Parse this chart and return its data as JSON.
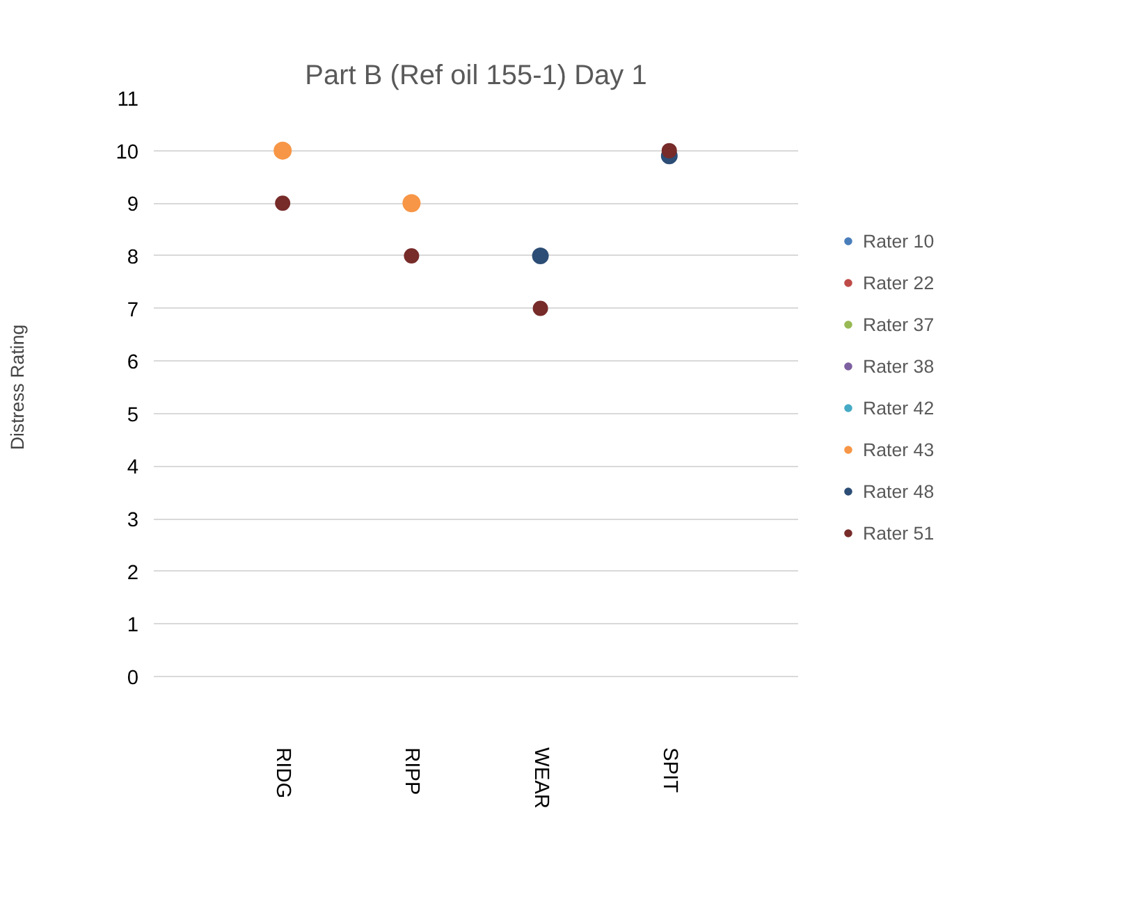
{
  "chart_data": {
    "type": "scatter",
    "title": "Part B (Ref oil 155-1) Day 1",
    "ylabel": "Distress Rating",
    "categories": [
      "RIDG",
      "RIPP",
      "WEAR",
      "SPIT"
    ],
    "ylim": [
      0,
      11
    ],
    "yticks": [
      0,
      1,
      2,
      3,
      4,
      5,
      6,
      7,
      8,
      9,
      10,
      11
    ],
    "grid": "y",
    "legend": "right",
    "marker": "circle",
    "series": [
      {
        "name": "Rater 10",
        "color": "#4a7ebb",
        "values": [
          null,
          null,
          null,
          null
        ]
      },
      {
        "name": "Rater 22",
        "color": "#be4b48",
        "values": [
          null,
          null,
          null,
          null
        ]
      },
      {
        "name": "Rater 37",
        "color": "#98b954",
        "values": [
          null,
          null,
          null,
          null
        ]
      },
      {
        "name": "Rater 38",
        "color": "#7d60a0",
        "values": [
          null,
          null,
          null,
          null
        ]
      },
      {
        "name": "Rater 42",
        "color": "#46aac5",
        "values": [
          null,
          null,
          null,
          null
        ]
      },
      {
        "name": "Rater 43",
        "color": "#f79646",
        "values": [
          10,
          9,
          null,
          null
        ]
      },
      {
        "name": "Rater 48",
        "color": "#2c4d75",
        "values": [
          null,
          null,
          8,
          9.9
        ]
      },
      {
        "name": "Rater 51",
        "color": "#772c2a",
        "values": [
          9,
          8,
          7,
          10
        ]
      }
    ]
  }
}
